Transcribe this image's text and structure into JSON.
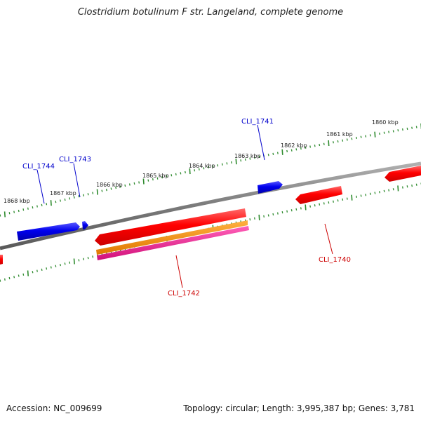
{
  "title": "Clostridium botulinum F str. Langeland, complete genome",
  "footer": {
    "accession": "Accession: NC_009699",
    "stats": "Topology: circular; Length: 3,995,387 bp; Genes: 3,781"
  },
  "colors": {
    "backbone": "#7a7a7a",
    "ticks": "#2e8b2e",
    "forward_gene": "#0000e6",
    "reverse_gene": "#ee0000",
    "orange_feature": "#ee8800",
    "magenta_feature": "#e0208a",
    "forward_label": "#0000cc",
    "reverse_label": "#cc0000"
  },
  "scale_labels": [
    {
      "text": "1860 kbp",
      "kbp": 1860
    },
    {
      "text": "1861 kbp",
      "kbp": 1861
    },
    {
      "text": "1862 kbp",
      "kbp": 1862
    },
    {
      "text": "1863 kbp",
      "kbp": 1863
    },
    {
      "text": "1864 kbp",
      "kbp": 1864
    },
    {
      "text": "1865 kbp",
      "kbp": 1865
    },
    {
      "text": "1866 kbp",
      "kbp": 1866
    },
    {
      "text": "1867 kbp",
      "kbp": 1867
    },
    {
      "text": "1868 kbp",
      "kbp": 1868
    }
  ],
  "genes": [
    {
      "name": "CLI_1740",
      "strand": "reverse",
      "color_key": "reverse_gene"
    },
    {
      "name": "CLI_1741",
      "strand": "forward",
      "color_key": "forward_gene"
    },
    {
      "name": "CLI_1742",
      "strand": "reverse",
      "color_key": "reverse_gene"
    },
    {
      "name": "CLI_1743",
      "strand": "forward",
      "color_key": "forward_gene"
    },
    {
      "name": "CLI_1744",
      "strand": "forward",
      "color_key": "forward_gene"
    }
  ]
}
